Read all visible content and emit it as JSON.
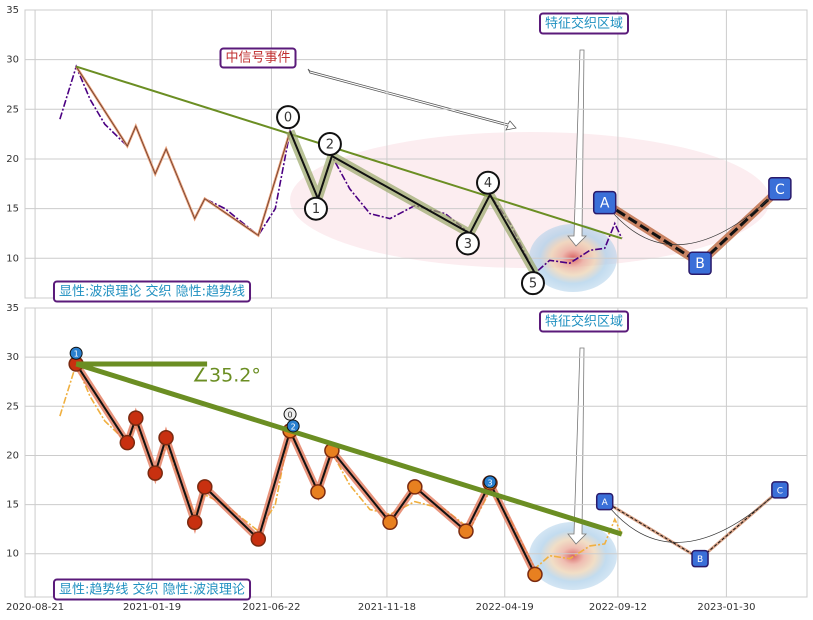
{
  "chart_data": [
    {
      "type": "line",
      "x": [
        "2020-09-22",
        "2020-10-13",
        "2020-10-31",
        "2020-11-19",
        "2020-12-18",
        "2020-12-29",
        "2021-01-23",
        "2021-02-06",
        "2021-02-24",
        "2021-03-15",
        "2021-03-28",
        "2021-04-23",
        "2021-06-05",
        "2021-06-27",
        "2021-07-16",
        "2021-08-21",
        "2021-09-08",
        "2021-10-01",
        "2021-10-27",
        "2021-11-22",
        "2021-12-24",
        "2022-02-01",
        "2022-03-05",
        "2022-03-31",
        "2022-04-26",
        "2022-05-15",
        "2022-05-28",
        "2022-06-16",
        "2022-07-12",
        "2022-08-07",
        "2022-08-26",
        "2022-09-08",
        "2022-09-17"
      ],
      "values": [
        24,
        29.3,
        26,
        23.5,
        21.3,
        23.3,
        18.5,
        21,
        17.5,
        14,
        16,
        15,
        12.3,
        15,
        22.8,
        16,
        20.3,
        17,
        14.5,
        14,
        15.3,
        14.5,
        12.5,
        16.4,
        13.5,
        10.5,
        8.5,
        9.8,
        9.5,
        10.8,
        11,
        13.5,
        12
      ],
      "color": "#4b0082",
      "xlim": [
        "2020-08-08",
        "2023-05-14"
      ],
      "ylim": [
        6,
        35
      ],
      "yticks": [
        10,
        15,
        20,
        25,
        30,
        35
      ],
      "grid": true,
      "zigzag": {
        "x": [
          "2020-10-13",
          "2020-12-18",
          "2020-12-29",
          "2021-01-23",
          "2021-02-06",
          "2021-03-15",
          "2021-03-28",
          "2021-06-05",
          "2021-07-16"
        ],
        "values": [
          29.3,
          21.3,
          23.3,
          18.5,
          21,
          14,
          16,
          12.3,
          22.8
        ],
        "color": "#e8a07a"
      },
      "wave": {
        "labels": [
          "0",
          "1",
          "2",
          "3",
          "4",
          "5"
        ],
        "x": [
          "2021-07-16",
          "2021-08-21",
          "2021-09-08",
          "2022-03-05",
          "2022-03-31",
          "2022-05-28"
        ],
        "values": [
          22.8,
          16,
          20.3,
          12.5,
          16.4,
          8.5
        ],
        "color": "#9aa86a"
      },
      "projection": {
        "labels": [
          "A",
          "B",
          "C"
        ],
        "x": [
          "2022-08-26",
          "2022-12-27",
          "2023-04-09"
        ],
        "values": [
          15.6,
          9.5,
          17
        ],
        "color": "#c0704a"
      },
      "trend": {
        "x": [
          "2020-10-13",
          "2022-09-17"
        ],
        "values": [
          29.3,
          12
        ],
        "color": "#6b8e23"
      },
      "annotations": [
        "中信号事件",
        "特征交织区域",
        "显性:波浪理论 交织 隐性:趋势线"
      ]
    },
    {
      "type": "line",
      "x": [
        "2020-09-22",
        "2020-10-13",
        "2020-10-31",
        "2020-11-19",
        "2020-12-18",
        "2020-12-29",
        "2021-01-23",
        "2021-02-06",
        "2021-02-24",
        "2021-03-15",
        "2021-03-28",
        "2021-04-23",
        "2021-06-05",
        "2021-06-27",
        "2021-07-16",
        "2021-08-21",
        "2021-09-08",
        "2021-10-01",
        "2021-10-27",
        "2021-11-22",
        "2021-12-24",
        "2022-02-01",
        "2022-03-05",
        "2022-03-31",
        "2022-04-26",
        "2022-05-15",
        "2022-05-28",
        "2022-06-16",
        "2022-07-12",
        "2022-08-07",
        "2022-08-26",
        "2022-09-08",
        "2022-09-17"
      ],
      "values": [
        24,
        29.3,
        26,
        23.5,
        21.3,
        23.3,
        18.5,
        21,
        17.5,
        14,
        16,
        15,
        12.3,
        15,
        22.8,
        16,
        20.3,
        17,
        14.5,
        14,
        15.3,
        14.5,
        12.5,
        16.4,
        13.5,
        10.5,
        8.5,
        9.8,
        9.5,
        10.8,
        11,
        13.5,
        12
      ],
      "color": "#f0b040",
      "xlim": [
        "2020-08-08",
        "2023-05-14"
      ],
      "ylim": [
        5.6,
        35
      ],
      "yticks": [
        10,
        15,
        20,
        25,
        30,
        35
      ],
      "grid": true,
      "xticks": [
        "2020-08-21",
        "2021-01-19",
        "2021-06-22",
        "2021-11-18",
        "2022-04-19",
        "2022-09-12",
        "2023-01-30"
      ],
      "zigzag": {
        "x": [
          "2020-10-13",
          "2020-12-18",
          "2020-12-29",
          "2021-01-23",
          "2021-02-06",
          "2021-03-15",
          "2021-03-28",
          "2021-06-05",
          "2021-07-16",
          "2021-08-21",
          "2021-09-08",
          "2021-11-22",
          "2021-12-24",
          "2022-02-28",
          "2022-03-31",
          "2022-05-28"
        ],
        "values": [
          29.3,
          21.3,
          23.8,
          18.2,
          21.8,
          13.2,
          16.8,
          11.5,
          22.5,
          16.3,
          20.5,
          13.2,
          16.8,
          12.3,
          17.2,
          7.9
        ],
        "color": "#e07050"
      },
      "pivot_labels": {
        "labels": [
          "1",
          "0",
          "2",
          "3"
        ],
        "x": [
          "2020-10-13",
          "2021-07-16",
          "2021-07-20",
          "2022-03-31"
        ],
        "values": [
          30.4,
          24.2,
          23,
          17.3
        ]
      },
      "projection": {
        "labels": [
          "A",
          "B",
          "C"
        ],
        "x": [
          "2022-08-26",
          "2022-12-27",
          "2023-04-09"
        ],
        "values": [
          15.3,
          9.5,
          16.5
        ],
        "color": "#d09070"
      },
      "trend": {
        "x": [
          "2020-10-13",
          "2022-09-17"
        ],
        "values": [
          29.3,
          12
        ],
        "color": "#6b8e23"
      },
      "angle_line": {
        "x": [
          "2020-10-13",
          "2021-03-31"
        ],
        "values": [
          29.3,
          29.3
        ]
      },
      "annotations": [
        "特征交织区域",
        "显性:趋势线 交织 隐性:波浪理论",
        "∠35.2°"
      ]
    }
  ]
}
